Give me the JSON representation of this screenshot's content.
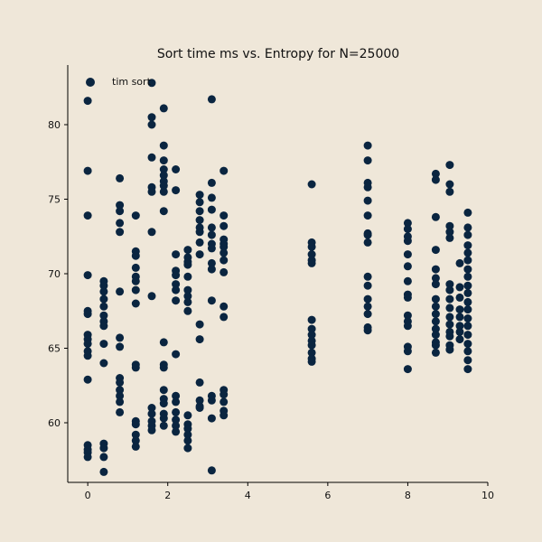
{
  "chart_data": {
    "type": "scatter",
    "title": "Sort time ms vs. Entropy for N=25000",
    "xlabel": "",
    "ylabel": "",
    "xlim": [
      -0.5,
      10
    ],
    "ylim": [
      56,
      84
    ],
    "x_ticks": [
      0,
      2,
      4,
      6,
      8,
      10
    ],
    "y_ticks": [
      60,
      65,
      70,
      75,
      80
    ],
    "legend": {
      "position": "top-left",
      "entries": [
        "tim sort"
      ]
    },
    "grid": false,
    "marker_color": "#0a2540",
    "series": [
      {
        "name": "tim sort",
        "points": [
          [
            0.0,
            81.6
          ],
          [
            0.0,
            76.9
          ],
          [
            0.0,
            73.9
          ],
          [
            0.0,
            69.9
          ],
          [
            0.0,
            67.5
          ],
          [
            0.0,
            67.3
          ],
          [
            0.0,
            65.9
          ],
          [
            0.0,
            65.6
          ],
          [
            0.0,
            65.3
          ],
          [
            0.0,
            64.8
          ],
          [
            0.0,
            64.5
          ],
          [
            0.0,
            62.9
          ],
          [
            0.0,
            58.5
          ],
          [
            0.0,
            58.2
          ],
          [
            0.0,
            58.0
          ],
          [
            0.0,
            57.7
          ],
          [
            0.4,
            69.5
          ],
          [
            0.4,
            69.2
          ],
          [
            0.4,
            68.8
          ],
          [
            0.4,
            68.3
          ],
          [
            0.4,
            67.8
          ],
          [
            0.4,
            67.2
          ],
          [
            0.4,
            66.8
          ],
          [
            0.4,
            66.5
          ],
          [
            0.4,
            65.3
          ],
          [
            0.4,
            64.0
          ],
          [
            0.4,
            58.6
          ],
          [
            0.4,
            58.3
          ],
          [
            0.4,
            57.7
          ],
          [
            0.4,
            56.7
          ],
          [
            0.8,
            76.4
          ],
          [
            0.8,
            74.6
          ],
          [
            0.8,
            74.2
          ],
          [
            0.8,
            73.4
          ],
          [
            0.8,
            72.8
          ],
          [
            0.8,
            68.8
          ],
          [
            0.8,
            65.7
          ],
          [
            0.8,
            65.1
          ],
          [
            0.8,
            63.0
          ],
          [
            0.8,
            62.7
          ],
          [
            0.8,
            62.2
          ],
          [
            0.8,
            61.8
          ],
          [
            0.8,
            61.4
          ],
          [
            0.8,
            60.7
          ],
          [
            1.2,
            73.9
          ],
          [
            1.2,
            71.5
          ],
          [
            1.2,
            71.2
          ],
          [
            1.2,
            70.4
          ],
          [
            1.2,
            69.8
          ],
          [
            1.2,
            69.5
          ],
          [
            1.2,
            68.9
          ],
          [
            1.2,
            68.0
          ],
          [
            1.2,
            63.9
          ],
          [
            1.2,
            63.7
          ],
          [
            1.2,
            60.1
          ],
          [
            1.2,
            59.9
          ],
          [
            1.2,
            59.2
          ],
          [
            1.2,
            58.8
          ],
          [
            1.2,
            58.4
          ],
          [
            1.6,
            82.8
          ],
          [
            1.6,
            80.5
          ],
          [
            1.6,
            80.0
          ],
          [
            1.6,
            77.8
          ],
          [
            1.6,
            75.8
          ],
          [
            1.6,
            75.5
          ],
          [
            1.6,
            72.8
          ],
          [
            1.6,
            68.5
          ],
          [
            1.6,
            61.0
          ],
          [
            1.6,
            60.6
          ],
          [
            1.6,
            60.1
          ],
          [
            1.6,
            59.8
          ],
          [
            1.6,
            59.5
          ],
          [
            1.9,
            81.1
          ],
          [
            1.9,
            78.6
          ],
          [
            1.9,
            77.6
          ],
          [
            1.9,
            77.0
          ],
          [
            1.9,
            76.6
          ],
          [
            1.9,
            76.2
          ],
          [
            1.9,
            75.9
          ],
          [
            1.9,
            75.5
          ],
          [
            1.9,
            74.2
          ],
          [
            1.9,
            65.4
          ],
          [
            1.9,
            63.9
          ],
          [
            1.9,
            63.7
          ],
          [
            1.9,
            62.2
          ],
          [
            1.9,
            61.6
          ],
          [
            1.9,
            61.3
          ],
          [
            1.9,
            60.6
          ],
          [
            1.9,
            60.3
          ],
          [
            1.9,
            59.8
          ],
          [
            2.2,
            77.0
          ],
          [
            2.2,
            75.6
          ],
          [
            2.2,
            71.3
          ],
          [
            2.2,
            70.2
          ],
          [
            2.2,
            69.9
          ],
          [
            2.2,
            69.3
          ],
          [
            2.2,
            68.9
          ],
          [
            2.2,
            68.2
          ],
          [
            2.2,
            64.6
          ],
          [
            2.2,
            61.8
          ],
          [
            2.2,
            61.4
          ],
          [
            2.2,
            60.7
          ],
          [
            2.2,
            60.2
          ],
          [
            2.2,
            59.8
          ],
          [
            2.2,
            59.4
          ],
          [
            2.5,
            71.6
          ],
          [
            2.5,
            71.1
          ],
          [
            2.5,
            70.8
          ],
          [
            2.5,
            70.6
          ],
          [
            2.5,
            69.8
          ],
          [
            2.5,
            68.9
          ],
          [
            2.5,
            68.5
          ],
          [
            2.5,
            68.1
          ],
          [
            2.5,
            67.5
          ],
          [
            2.5,
            60.5
          ],
          [
            2.5,
            59.9
          ],
          [
            2.5,
            59.6
          ],
          [
            2.5,
            59.2
          ],
          [
            2.5,
            58.8
          ],
          [
            2.5,
            58.3
          ],
          [
            2.8,
            75.3
          ],
          [
            2.8,
            74.8
          ],
          [
            2.8,
            74.2
          ],
          [
            2.8,
            73.6
          ],
          [
            2.8,
            73.1
          ],
          [
            2.8,
            72.8
          ],
          [
            2.8,
            72.1
          ],
          [
            2.8,
            71.3
          ],
          [
            2.8,
            66.6
          ],
          [
            2.8,
            65.6
          ],
          [
            2.8,
            62.7
          ],
          [
            2.8,
            61.5
          ],
          [
            2.8,
            61.1
          ],
          [
            2.8,
            61.0
          ],
          [
            3.1,
            81.7
          ],
          [
            3.1,
            76.1
          ],
          [
            3.1,
            75.1
          ],
          [
            3.1,
            74.3
          ],
          [
            3.1,
            73.1
          ],
          [
            3.1,
            72.6
          ],
          [
            3.1,
            72.0
          ],
          [
            3.1,
            71.7
          ],
          [
            3.1,
            70.7
          ],
          [
            3.1,
            70.3
          ],
          [
            3.1,
            68.2
          ],
          [
            3.1,
            61.8
          ],
          [
            3.1,
            61.5
          ],
          [
            3.1,
            60.3
          ],
          [
            3.1,
            56.8
          ],
          [
            3.4,
            76.9
          ],
          [
            3.4,
            73.9
          ],
          [
            3.4,
            73.2
          ],
          [
            3.4,
            72.3
          ],
          [
            3.4,
            72.0
          ],
          [
            3.4,
            71.8
          ],
          [
            3.4,
            71.4
          ],
          [
            3.4,
            70.9
          ],
          [
            3.4,
            70.1
          ],
          [
            3.4,
            67.8
          ],
          [
            3.4,
            67.1
          ],
          [
            3.4,
            62.2
          ],
          [
            3.4,
            61.9
          ],
          [
            3.4,
            61.4
          ],
          [
            3.4,
            60.8
          ],
          [
            3.4,
            60.5
          ],
          [
            5.6,
            76.0
          ],
          [
            5.6,
            72.1
          ],
          [
            5.6,
            71.8
          ],
          [
            5.6,
            71.3
          ],
          [
            5.6,
            70.9
          ],
          [
            5.6,
            70.7
          ],
          [
            5.6,
            66.9
          ],
          [
            5.6,
            66.3
          ],
          [
            5.6,
            65.9
          ],
          [
            5.6,
            65.5
          ],
          [
            5.6,
            65.2
          ],
          [
            5.6,
            64.7
          ],
          [
            5.6,
            64.3
          ],
          [
            5.6,
            64.1
          ],
          [
            7.0,
            78.6
          ],
          [
            7.0,
            77.6
          ],
          [
            7.0,
            76.1
          ],
          [
            7.0,
            75.8
          ],
          [
            7.0,
            74.9
          ],
          [
            7.0,
            73.9
          ],
          [
            7.0,
            72.7
          ],
          [
            7.0,
            72.6
          ],
          [
            7.0,
            72.1
          ],
          [
            7.0,
            69.8
          ],
          [
            7.0,
            69.2
          ],
          [
            7.0,
            68.3
          ],
          [
            7.0,
            67.8
          ],
          [
            7.0,
            67.3
          ],
          [
            7.0,
            66.4
          ],
          [
            7.0,
            66.2
          ],
          [
            8.0,
            73.4
          ],
          [
            8.0,
            73.0
          ],
          [
            8.0,
            72.5
          ],
          [
            8.0,
            72.2
          ],
          [
            8.0,
            71.3
          ],
          [
            8.0,
            70.5
          ],
          [
            8.0,
            69.5
          ],
          [
            8.0,
            68.6
          ],
          [
            8.0,
            68.4
          ],
          [
            8.0,
            67.2
          ],
          [
            8.0,
            66.8
          ],
          [
            8.0,
            66.5
          ],
          [
            8.0,
            65.1
          ],
          [
            8.0,
            64.8
          ],
          [
            8.0,
            63.6
          ],
          [
            8.7,
            76.7
          ],
          [
            8.7,
            76.3
          ],
          [
            8.7,
            73.8
          ],
          [
            8.7,
            71.6
          ],
          [
            8.7,
            70.3
          ],
          [
            8.7,
            69.7
          ],
          [
            8.7,
            69.3
          ],
          [
            8.7,
            68.3
          ],
          [
            8.7,
            67.8
          ],
          [
            8.7,
            67.3
          ],
          [
            8.7,
            66.8
          ],
          [
            8.7,
            66.3
          ],
          [
            8.7,
            65.9
          ],
          [
            8.7,
            65.4
          ],
          [
            8.7,
            65.2
          ],
          [
            8.7,
            64.7
          ],
          [
            9.05,
            77.3
          ],
          [
            9.05,
            76.0
          ],
          [
            9.05,
            75.5
          ],
          [
            9.05,
            73.2
          ],
          [
            9.05,
            72.8
          ],
          [
            9.05,
            72.4
          ],
          [
            9.05,
            69.3
          ],
          [
            9.05,
            68.9
          ],
          [
            9.05,
            68.3
          ],
          [
            9.05,
            67.7
          ],
          [
            9.05,
            67.1
          ],
          [
            9.05,
            66.6
          ],
          [
            9.05,
            66.1
          ],
          [
            9.05,
            65.8
          ],
          [
            9.05,
            65.2
          ],
          [
            9.05,
            64.9
          ],
          [
            9.3,
            70.7
          ],
          [
            9.3,
            69.1
          ],
          [
            9.3,
            68.4
          ],
          [
            9.3,
            67.6
          ],
          [
            9.3,
            67.1
          ],
          [
            9.3,
            66.5
          ],
          [
            9.3,
            66.1
          ],
          [
            9.3,
            65.6
          ],
          [
            9.5,
            74.1
          ],
          [
            9.5,
            73.1
          ],
          [
            9.5,
            72.6
          ],
          [
            9.5,
            71.9
          ],
          [
            9.5,
            71.4
          ],
          [
            9.5,
            70.9
          ],
          [
            9.5,
            70.3
          ],
          [
            9.5,
            69.8
          ],
          [
            9.5,
            69.2
          ],
          [
            9.5,
            68.7
          ],
          [
            9.5,
            68.1
          ],
          [
            9.5,
            67.6
          ],
          [
            9.5,
            67.0
          ],
          [
            9.5,
            66.5
          ],
          [
            9.5,
            65.9
          ],
          [
            9.5,
            65.3
          ],
          [
            9.5,
            64.8
          ],
          [
            9.5,
            64.2
          ],
          [
            9.5,
            63.6
          ]
        ]
      }
    ]
  }
}
